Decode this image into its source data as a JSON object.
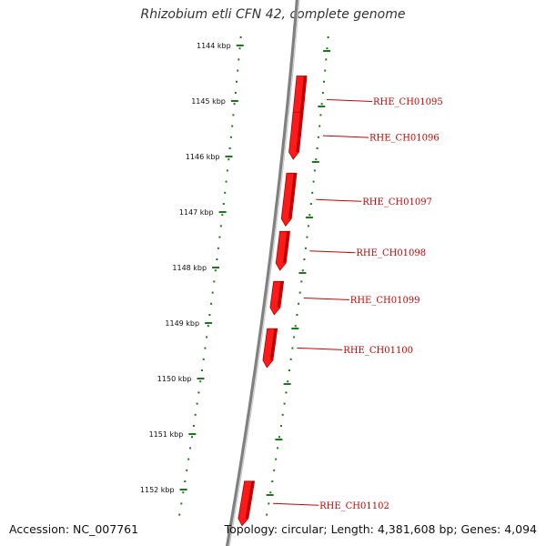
{
  "title": "Rhizobium etli CFN 42, complete genome",
  "accession": "Accession: NC_007761",
  "topology": "Topology: circular; Length: 4,381,608 bp; Genes: 4,094",
  "colors": {
    "backbone": "#808080",
    "backbone_highlight": "#d8d8d8",
    "tick": "#1a7a1a",
    "gene_fill": "#ff1a1a",
    "gene_shade": "#b30000",
    "gene_label": "#cc0000"
  },
  "kbp_labels": [
    "1144 kbp",
    "1145 kbp",
    "1146 kbp",
    "1147 kbp",
    "1148 kbp",
    "1149 kbp",
    "1150 kbp",
    "1151 kbp",
    "1152 kbp"
  ],
  "genes": [
    {
      "label": "RHE_CH01095",
      "start_kbp": 1144.55,
      "end_kbp": 1145.4
    },
    {
      "label": "RHE_CH01096",
      "start_kbp": 1145.2,
      "end_kbp": 1146.05
    },
    {
      "label": "RHE_CH01097",
      "start_kbp": 1146.3,
      "end_kbp": 1147.25
    },
    {
      "label": "RHE_CH01098",
      "start_kbp": 1147.35,
      "end_kbp": 1148.05
    },
    {
      "label": "RHE_CH01099",
      "start_kbp": 1148.25,
      "end_kbp": 1148.85
    },
    {
      "label": "RHE_CH01100",
      "start_kbp": 1149.1,
      "end_kbp": 1149.8
    },
    {
      "label": "RHE_CH01102",
      "start_kbp": 1151.85,
      "end_kbp": 1152.65
    }
  ]
}
